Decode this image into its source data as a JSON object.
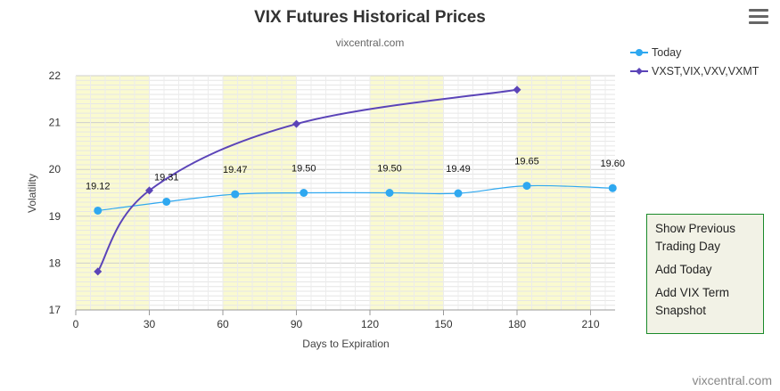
{
  "chart_data": {
    "type": "line",
    "title": "VIX Futures Historical Prices",
    "subtitle": "vixcentral.com",
    "xlabel": "Days to Expiration",
    "ylabel": "Volatility",
    "xlim": [
      0,
      220
    ],
    "ylim": [
      17,
      22
    ],
    "x_ticks": [
      0,
      30,
      60,
      90,
      120,
      150,
      180,
      210
    ],
    "y_ticks": [
      17,
      18,
      19,
      20,
      21,
      22
    ],
    "shaded_bands": [
      [
        0,
        30
      ],
      [
        60,
        90
      ],
      [
        120,
        150
      ],
      [
        180,
        210
      ]
    ],
    "grid": true,
    "legend_position": "top-right",
    "series": [
      {
        "name": "Today",
        "color": "#2fa8f0",
        "x": [
          9,
          37,
          65,
          93,
          128,
          156,
          184,
          219
        ],
        "values": [
          19.12,
          19.31,
          19.47,
          19.5,
          19.5,
          19.49,
          19.65,
          19.6
        ],
        "labels": [
          "19.12",
          "19.31",
          "19.47",
          "19.50",
          "19.50",
          "19.49",
          "19.65",
          "19.60"
        ]
      },
      {
        "name": "VXST,VIX,VXV,VXMT",
        "color": "#5b44b8",
        "x": [
          9,
          30,
          90,
          180
        ],
        "values": [
          17.82,
          19.55,
          20.97,
          21.7
        ]
      }
    ]
  },
  "menu": {
    "items": [
      "Show Previous Trading Day",
      "Add Today",
      "Add VIX Term Snapshot"
    ]
  },
  "credits": "vixcentral.com",
  "icons": {
    "menu": "hamburger-menu-icon"
  }
}
